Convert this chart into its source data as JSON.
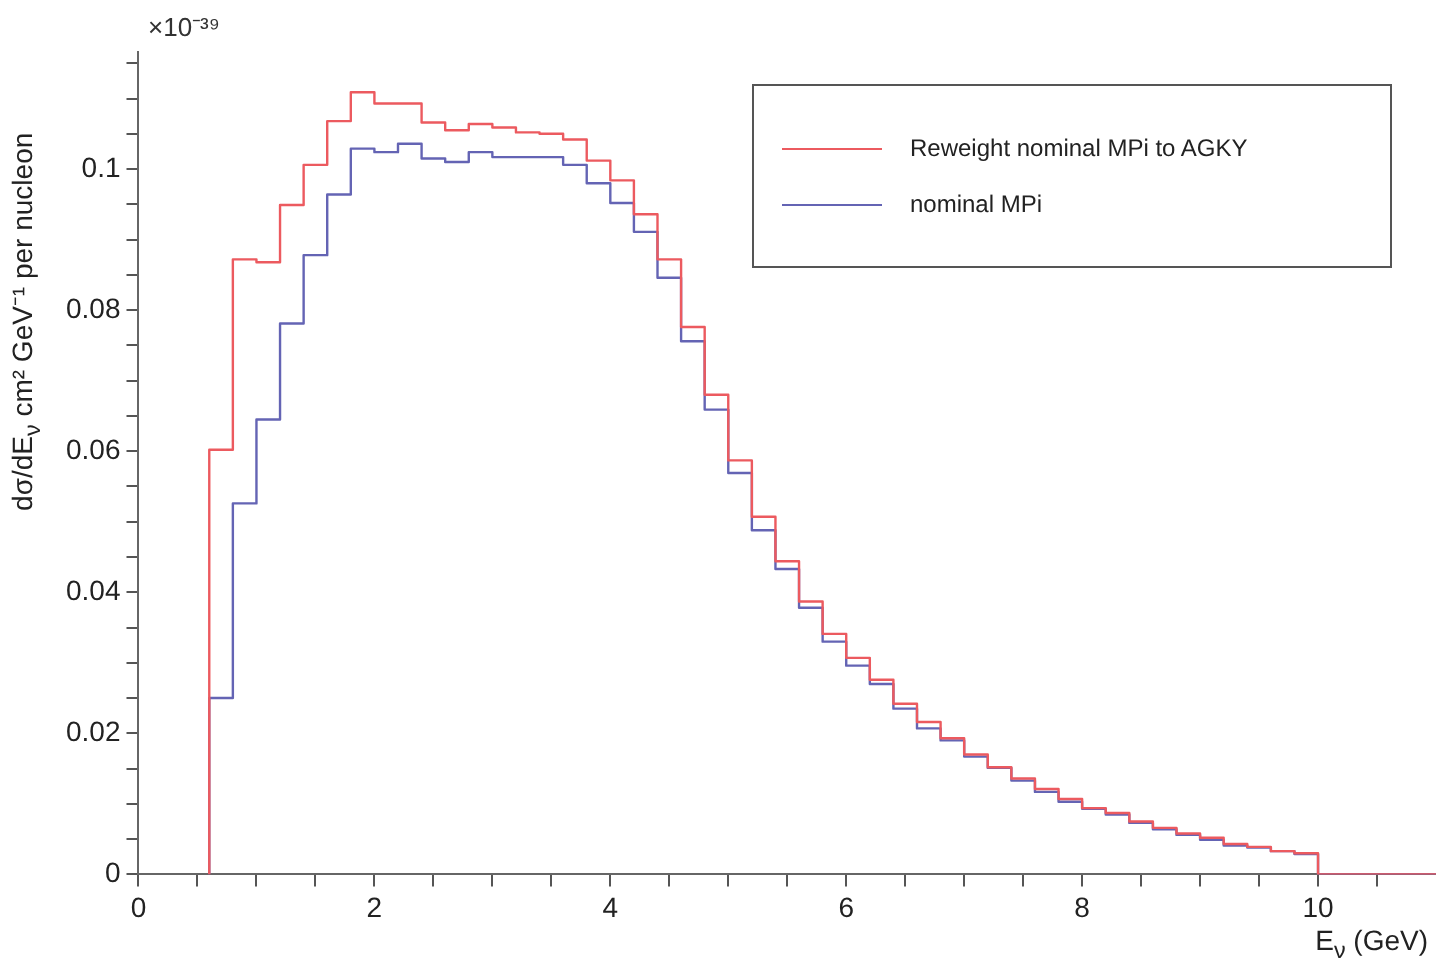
{
  "chart_data": {
    "type": "histogram",
    "xlabel": "E$_{ν}$ (GeV)",
    "ylabel": "dσ/dE$_{ν}$ cm² GeV⁻¹ per nucleon",
    "annotations": [
      "×10⁻³⁹"
    ],
    "bins": [
      0.6,
      0.8,
      1.0,
      1.2,
      1.4,
      1.6,
      1.8,
      2.0,
      2.2,
      2.4,
      2.6,
      2.8,
      3.0,
      3.2,
      3.4,
      3.6,
      3.8,
      4.0,
      4.2,
      4.4,
      4.6,
      4.8,
      5.0,
      5.2,
      5.4,
      5.6,
      5.8,
      6.0,
      6.2,
      6.4,
      6.6,
      6.8,
      7.0,
      7.2,
      7.4,
      7.6,
      7.8,
      8.0,
      8.2,
      8.4,
      8.6,
      8.8,
      9.0,
      9.2,
      9.4,
      9.6,
      9.8,
      10.0,
      10.2,
      10.4,
      10.6,
      10.8,
      11.0
    ],
    "series": [
      {
        "name": "Reweight nominal MPi to AGKY",
        "color": "#ec5a5f",
        "values": [
          0.0602,
          0.0872,
          0.0868,
          0.0949,
          0.1006,
          0.1068,
          0.1109,
          0.1093,
          0.1093,
          0.1066,
          0.1055,
          0.1064,
          0.1059,
          0.1052,
          0.105,
          0.1042,
          0.1012,
          0.0984,
          0.0936,
          0.0872,
          0.0776,
          0.068,
          0.0587,
          0.0507,
          0.0444,
          0.0387,
          0.0341,
          0.0307,
          0.0276,
          0.0242,
          0.0216,
          0.0193,
          0.017,
          0.0152,
          0.0136,
          0.0121,
          0.0107,
          0.0094,
          0.0087,
          0.0075,
          0.0066,
          0.0058,
          0.0052,
          0.0043,
          0.0039,
          0.0033,
          0.003,
          0,
          0,
          0,
          0,
          0
        ]
      },
      {
        "name": "nominal MPi",
        "color": "#6464b4",
        "values": [
          0.025,
          0.0526,
          0.0645,
          0.0781,
          0.0878,
          0.0964,
          0.1029,
          0.1024,
          0.1036,
          0.1015,
          0.101,
          0.1024,
          0.1017,
          0.1017,
          0.1017,
          0.1006,
          0.098,
          0.0952,
          0.0911,
          0.0846,
          0.0756,
          0.0659,
          0.0569,
          0.0488,
          0.0433,
          0.0378,
          0.033,
          0.0296,
          0.027,
          0.0235,
          0.0207,
          0.019,
          0.0167,
          0.0151,
          0.0133,
          0.0117,
          0.0103,
          0.0093,
          0.0085,
          0.0073,
          0.0064,
          0.0056,
          0.0049,
          0.0041,
          0.0038,
          0.0033,
          0.0029,
          0,
          0,
          0,
          0,
          0
        ]
      }
    ],
    "xlim": [
      0,
      11
    ],
    "xticks": [
      0,
      {
        "value": 0.5,
        "label": null
      },
      {
        "value": 1,
        "label": null
      },
      {
        "value": 1.5,
        "label": null
      },
      2,
      {
        "value": 2.5,
        "label": null
      },
      {
        "value": 3,
        "label": null
      },
      {
        "value": 3.5,
        "label": null
      },
      4,
      {
        "value": 4.5,
        "label": null
      },
      {
        "value": 5,
        "label": null
      },
      {
        "value": 5.5,
        "label": null
      },
      6,
      {
        "value": 6.5,
        "label": null
      },
      {
        "value": 7,
        "label": null
      },
      {
        "value": 7.5,
        "label": null
      },
      8,
      {
        "value": 8.5,
        "label": null
      },
      {
        "value": 9,
        "label": null
      },
      {
        "value": 9.5,
        "label": null
      },
      10,
      {
        "value": 10.5,
        "label": null
      }
    ],
    "ylim": [
      0,
      0.1166
    ],
    "yticks": [
      0,
      {
        "value": 0.005,
        "label": null
      },
      {
        "value": 0.01,
        "label": null
      },
      {
        "value": 0.015,
        "label": null
      },
      0.02,
      {
        "value": 0.025,
        "label": null
      },
      {
        "value": 0.03,
        "label": null
      },
      {
        "value": 0.035,
        "label": null
      },
      0.04,
      {
        "value": 0.045,
        "label": null
      },
      {
        "value": 0.05,
        "label": null
      },
      {
        "value": 0.055,
        "label": null
      },
      0.06,
      {
        "value": 0.065,
        "label": null
      },
      {
        "value": 0.07,
        "label": null
      },
      {
        "value": 0.075,
        "label": null
      },
      0.08,
      {
        "value": 0.085,
        "label": null
      },
      {
        "value": 0.09,
        "label": null
      },
      {
        "value": 0.095,
        "label": null
      },
      0.1,
      {
        "value": 0.105,
        "label": null
      },
      {
        "value": 0.11,
        "label": null
      },
      {
        "value": 0.115,
        "label": null
      }
    ],
    "grid": false,
    "legend": "top right",
    "line_style": "solid",
    "marker": "none"
  }
}
